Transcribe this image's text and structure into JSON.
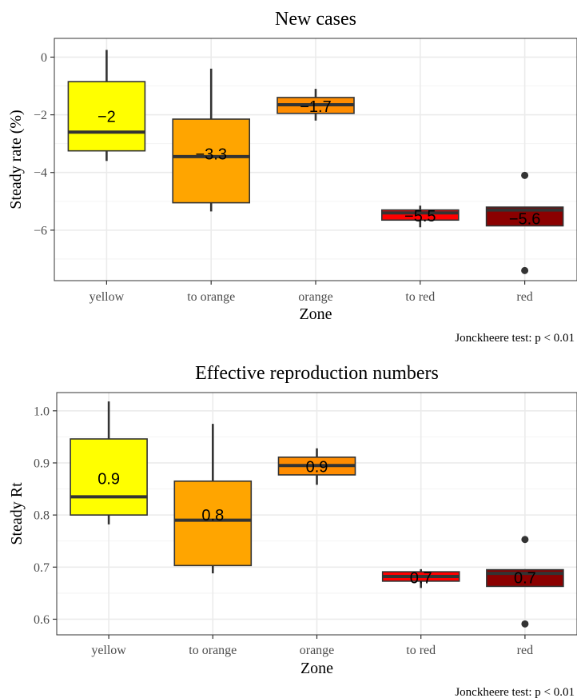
{
  "chart_data": [
    {
      "type": "box",
      "title": "New cases",
      "xlabel": "Zone",
      "ylabel": "Steady rate (%)",
      "caption": "Jonckheere test: p < 0.01",
      "ylim": [
        -7.75,
        0.65
      ],
      "yticks": [
        0,
        -2,
        -4,
        -6
      ],
      "ytick_labels": [
        "0",
        "−2",
        "−4",
        "−6"
      ],
      "grid": true,
      "categories": [
        "yellow",
        "to orange",
        "orange",
        "to red",
        "red"
      ],
      "colors": [
        "#ffff00",
        "#ffa500",
        "#ff8c00",
        "#ff0000",
        "#8b0000"
      ],
      "boxes": [
        {
          "category": "yellow",
          "whisker_low": -3.6,
          "q1": -3.25,
          "median": -2.6,
          "q3": -0.85,
          "whisker_high": 0.25,
          "outliers": [],
          "mean_label": "−2",
          "mean": -2.05
        },
        {
          "category": "to orange",
          "whisker_low": -5.35,
          "q1": -5.05,
          "median": -3.45,
          "q3": -2.15,
          "whisker_high": -0.4,
          "outliers": [],
          "mean_label": "−3.3",
          "mean": -3.35
        },
        {
          "category": "orange",
          "whisker_low": -2.2,
          "q1": -1.95,
          "median": -1.65,
          "q3": -1.4,
          "whisker_high": -1.1,
          "outliers": [],
          "mean_label": "−1.7",
          "mean": -1.7
        },
        {
          "category": "to red",
          "whisker_low": -5.9,
          "q1": -5.65,
          "median": -5.4,
          "q3": -5.3,
          "whisker_high": -5.15,
          "outliers": [],
          "mean_label": "−5.5",
          "mean": -5.5
        },
        {
          "category": "red",
          "whisker_low": -5.85,
          "q1": -5.85,
          "median": -5.3,
          "q3": -5.2,
          "whisker_high": -5.2,
          "outliers": [
            -4.1,
            -7.4
          ],
          "mean_label": "−5.6",
          "mean": -5.6
        }
      ]
    },
    {
      "type": "box",
      "title": "Effective reproduction numbers",
      "xlabel": "Zone",
      "ylabel": "Steady Rt",
      "caption": "Jonckheere test: p < 0.01",
      "ylim": [
        0.57,
        1.035
      ],
      "yticks": [
        1.0,
        0.9,
        0.8,
        0.7,
        0.6
      ],
      "ytick_labels": [
        "1.0",
        "0.9",
        "0.8",
        "0.7",
        "0.6"
      ],
      "grid": true,
      "categories": [
        "yellow",
        "to orange",
        "orange",
        "to red",
        "red"
      ],
      "colors": [
        "#ffff00",
        "#ffa500",
        "#ff8c00",
        "#ff0000",
        "#8b0000"
      ],
      "boxes": [
        {
          "category": "yellow",
          "whisker_low": 0.782,
          "q1": 0.8,
          "median": 0.835,
          "q3": 0.946,
          "whisker_high": 1.018,
          "outliers": [],
          "mean_label": "0.9",
          "mean": 0.87
        },
        {
          "category": "to orange",
          "whisker_low": 0.688,
          "q1": 0.703,
          "median": 0.79,
          "q3": 0.865,
          "whisker_high": 0.975,
          "outliers": [],
          "mean_label": "0.8",
          "mean": 0.8
        },
        {
          "category": "orange",
          "whisker_low": 0.858,
          "q1": 0.877,
          "median": 0.895,
          "q3": 0.911,
          "whisker_high": 0.928,
          "outliers": [],
          "mean_label": "0.9",
          "mean": 0.893
        },
        {
          "category": "to red",
          "whisker_low": 0.66,
          "q1": 0.673,
          "median": 0.682,
          "q3": 0.691,
          "whisker_high": 0.696,
          "outliers": [],
          "mean_label": "0.7",
          "mean": 0.68
        },
        {
          "category": "red",
          "whisker_low": 0.663,
          "q1": 0.663,
          "median": 0.688,
          "q3": 0.695,
          "whisker_high": 0.695,
          "outliers": [
            0.753,
            0.591
          ],
          "mean_label": "0.7",
          "mean": 0.68
        }
      ]
    }
  ]
}
